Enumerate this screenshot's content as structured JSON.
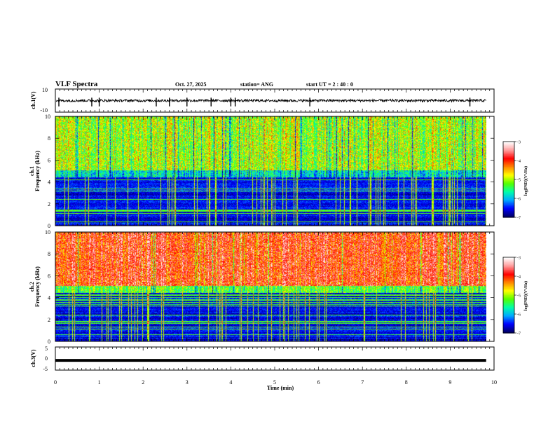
{
  "header": {
    "title": "VLF Spectra",
    "date": "Oct. 27, 2025",
    "station": "station= ANG",
    "start_ut": "start  UT  =   2  : 40 : 0"
  },
  "colors": {
    "background": "#ffffff",
    "axes": "#000000",
    "colormap": [
      "#000066",
      "#0000ff",
      "#00aaff",
      "#00ffaa",
      "#55ff00",
      "#ffff00",
      "#ff8800",
      "#ff0000",
      "#ff9999",
      "#ffffff"
    ]
  },
  "chart_data": [
    {
      "type": "line",
      "id": "ch1_waveform",
      "ylabel": "ch.1(V)",
      "ylim": [
        -10,
        10
      ],
      "yticks": [
        "10",
        "-10"
      ],
      "xlim": [
        0,
        10
      ],
      "trace_level": 0,
      "spike_times_min": [
        0.08,
        0.83,
        1.0,
        2.3,
        2.6,
        3.0,
        3.55,
        4.0,
        4.1,
        5.8,
        9.45
      ]
    },
    {
      "type": "heatmap",
      "id": "ch1_spectrogram",
      "ylabel_top": "ch.1",
      "ylabel": "Frequency  (kHz)",
      "ylim": [
        0,
        10
      ],
      "yticks": [
        "0",
        "2",
        "4",
        "6",
        "8",
        "10"
      ],
      "xlim": [
        0,
        9.82
      ],
      "colorbar": {
        "label": "log(PSD)(V²/Hz)",
        "ticks": [
          "-3",
          "-4",
          "-5",
          "-6",
          "-7"
        ],
        "range": [
          -7,
          -3
        ]
      },
      "mean_level_high_band": -5.0,
      "mean_level_low_band": -6.6,
      "band_edge_khz": 4.7
    },
    {
      "type": "heatmap",
      "id": "ch2_spectrogram",
      "ylabel_top": "ch.2",
      "ylabel": "Frequency  (kHz)",
      "ylim": [
        0,
        10
      ],
      "yticks": [
        "0",
        "2",
        "4",
        "6",
        "8",
        "10"
      ],
      "xlim": [
        0,
        9.82
      ],
      "colorbar": {
        "label": "log(PSD)(V²/Hz)",
        "ticks": [
          "-3",
          "-4",
          "-5",
          "-6",
          "-7"
        ],
        "range": [
          -7,
          -3
        ]
      },
      "mean_level_high_band": -3.9,
      "mean_level_low_band": -6.6,
      "band_edge_khz": 4.7
    },
    {
      "type": "line",
      "id": "ch3_waveform",
      "ylabel": "ch.3(V)",
      "ylim": [
        -5,
        5
      ],
      "yticks": [
        "5",
        "0",
        "-5"
      ],
      "xlim": [
        0,
        9.82
      ],
      "trace_level": -0.8
    }
  ],
  "xaxis": {
    "label": "Time  (min)",
    "ticks": [
      "0",
      "1",
      "2",
      "3",
      "4",
      "5",
      "6",
      "7",
      "8",
      "9",
      "10"
    ],
    "range": [
      0,
      10
    ]
  }
}
